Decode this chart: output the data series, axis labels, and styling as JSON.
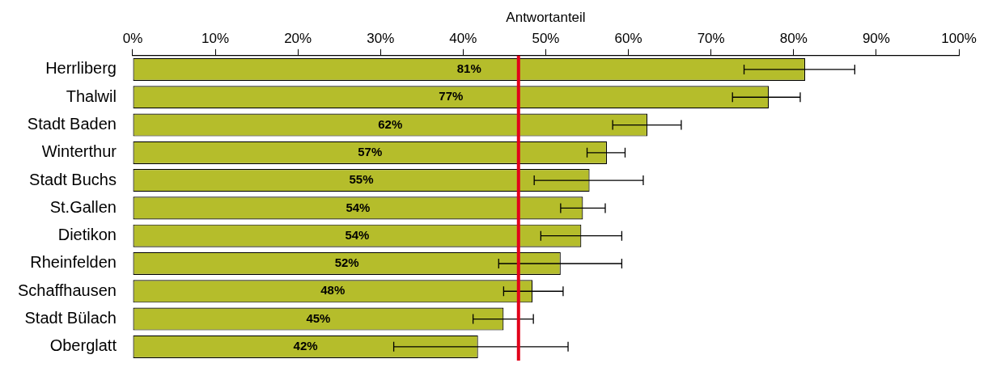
{
  "chart_data": {
    "type": "bar",
    "orientation": "horizontal",
    "xlabel": "Antwortanteil",
    "categories": [
      "Herrliberg",
      "Thalwil",
      "Stadt Baden",
      "Winterthur",
      "Stadt Buchs",
      "St.Gallen",
      "Dietikon",
      "Rheinfelden",
      "Schaffhausen",
      "Stadt Bülach",
      "Oberglatt"
    ],
    "values": [
      81.4,
      77.0,
      62.3,
      57.4,
      55.3,
      54.5,
      54.3,
      51.8,
      48.4,
      44.9,
      41.8
    ],
    "value_labels": [
      "81%",
      "77%",
      "62%",
      "57%",
      "55%",
      "54%",
      "54%",
      "52%",
      "48%",
      "45%",
      "42%"
    ],
    "errors": [
      [
        74.0,
        87.4
      ],
      [
        72.6,
        80.8
      ],
      [
        58.1,
        66.4
      ],
      [
        55.0,
        59.6
      ],
      [
        48.6,
        61.8
      ],
      [
        51.8,
        57.2
      ],
      [
        49.4,
        59.2
      ],
      [
        44.3,
        59.2
      ],
      [
        44.9,
        52.1
      ],
      [
        41.2,
        48.5
      ],
      [
        31.6,
        52.7
      ]
    ],
    "color": "#b5bd2b",
    "xlim": [
      0,
      100
    ],
    "xticks": [
      {
        "value": 0,
        "label": "0%"
      },
      {
        "value": 10,
        "label": "10%"
      },
      {
        "value": 20,
        "label": "20%"
      },
      {
        "value": 30,
        "label": "30%"
      },
      {
        "value": 40,
        "label": "40%"
      },
      {
        "value": 50,
        "label": "50%"
      },
      {
        "value": 60,
        "label": "60%"
      },
      {
        "value": 70,
        "label": "70%"
      },
      {
        "value": 80,
        "label": "80%"
      },
      {
        "value": 90,
        "label": "90%"
      },
      {
        "value": 100,
        "label": "100%"
      }
    ],
    "ref_lines": [
      {
        "axis": "x",
        "value": 46.7,
        "color": "#e2001a"
      }
    ],
    "grid": false,
    "legend": false
  }
}
